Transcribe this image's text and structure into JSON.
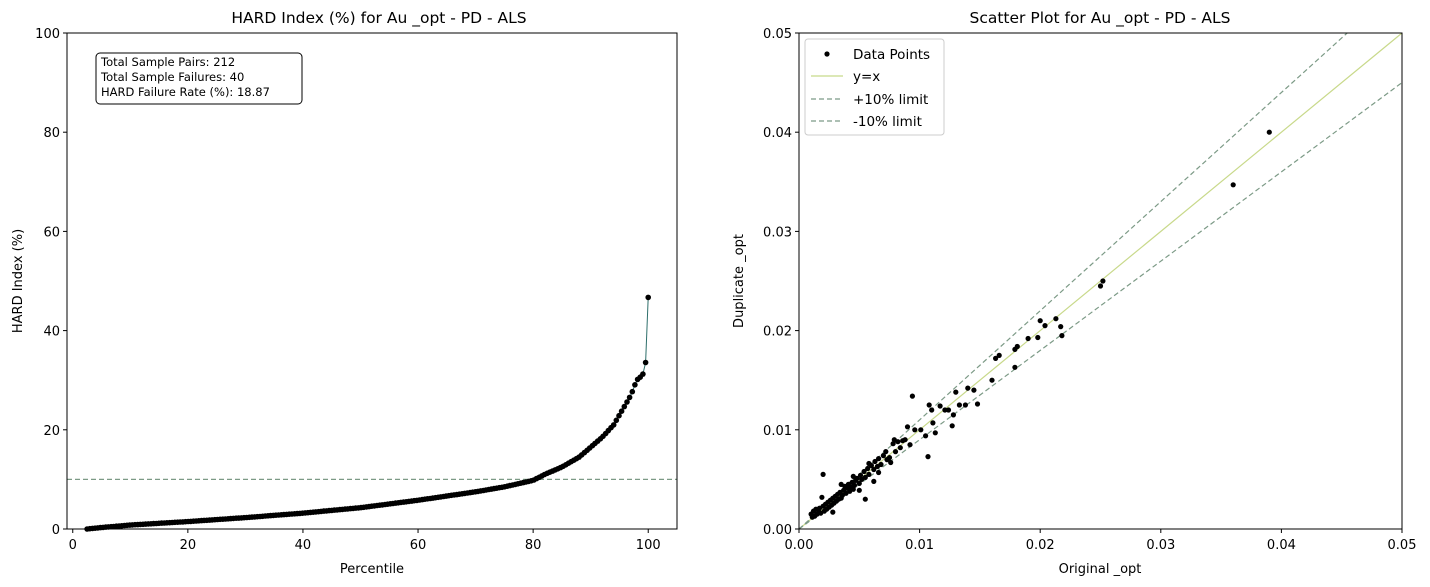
{
  "chart_data": [
    {
      "type": "line",
      "title": "HARD Index (%) for Au _opt - PD - ALS",
      "xlabel": "Percentile",
      "ylabel": "HARD Index (%)",
      "xlim": [
        -1,
        105
      ],
      "ylim": [
        0,
        100
      ],
      "xticks": [
        0,
        20,
        40,
        60,
        80,
        100
      ],
      "yticks": [
        0,
        20,
        40,
        60,
        80,
        100
      ],
      "threshold": 10,
      "info": [
        "Total Sample Pairs: 212",
        "Total Sample Failures: 40",
        "HARD Failure Rate (%): 18.87"
      ],
      "curve_knots": {
        "percentile": [
          2.5,
          5,
          10,
          20,
          30,
          40,
          50,
          60,
          70,
          75,
          80,
          82,
          85,
          88,
          90,
          92,
          94,
          96,
          97,
          98,
          99,
          99.5,
          100
        ],
        "hard_index": [
          0,
          0.3,
          0.8,
          1.5,
          2.3,
          3.2,
          4.3,
          5.8,
          7.5,
          8.5,
          9.8,
          11.0,
          12.5,
          14.5,
          16.5,
          18.5,
          21.0,
          25.0,
          27.0,
          30.0,
          31.0,
          32.5,
          46.7
        ]
      },
      "n_points": 212,
      "colors": {
        "line": "#2e6f6b",
        "points": "#000000",
        "threshold": "#7c9a86"
      }
    },
    {
      "type": "scatter",
      "title": "Scatter Plot for Au _opt - PD - ALS",
      "xlabel": "Original _opt",
      "ylabel": "Duplicate _opt",
      "xlim": [
        0,
        0.05
      ],
      "ylim": [
        0,
        0.05
      ],
      "xticks": [
        "0.00",
        "0.01",
        "0.02",
        "0.03",
        "0.04",
        "0.05"
      ],
      "yticks": [
        "0.00",
        "0.01",
        "0.02",
        "0.03",
        "0.04",
        "0.05"
      ],
      "legend_position": "upper-left",
      "legend": [
        "Data Points",
        "y=x",
        "+10% limit",
        "-10% limit"
      ],
      "limit_factors": [
        1.1,
        0.9
      ],
      "points": [
        [
          0.039,
          0.04
        ],
        [
          0.036,
          0.0347
        ],
        [
          0.0252,
          0.025
        ],
        [
          0.025,
          0.0245
        ],
        [
          0.0218,
          0.0195
        ],
        [
          0.0217,
          0.0204
        ],
        [
          0.0213,
          0.0212
        ],
        [
          0.0204,
          0.0205
        ],
        [
          0.02,
          0.021
        ],
        [
          0.0198,
          0.0193
        ],
        [
          0.019,
          0.0192
        ],
        [
          0.0181,
          0.0184
        ],
        [
          0.0179,
          0.0181
        ],
        [
          0.0179,
          0.0163
        ],
        [
          0.0166,
          0.0175
        ],
        [
          0.0163,
          0.0172
        ],
        [
          0.016,
          0.015
        ],
        [
          0.0148,
          0.0126
        ],
        [
          0.0145,
          0.014
        ],
        [
          0.014,
          0.0142
        ],
        [
          0.0138,
          0.0125
        ],
        [
          0.0133,
          0.0125
        ],
        [
          0.013,
          0.0138
        ],
        [
          0.0128,
          0.0115
        ],
        [
          0.0127,
          0.0104
        ],
        [
          0.0124,
          0.012
        ],
        [
          0.0121,
          0.012
        ],
        [
          0.0117,
          0.0124
        ],
        [
          0.0113,
          0.0097
        ],
        [
          0.0111,
          0.0107
        ],
        [
          0.011,
          0.012
        ],
        [
          0.0108,
          0.0125
        ],
        [
          0.0107,
          0.0073
        ],
        [
          0.0105,
          0.0094
        ],
        [
          0.0101,
          0.01
        ],
        [
          0.0096,
          0.01
        ],
        [
          0.0094,
          0.0134
        ],
        [
          0.0092,
          0.0085
        ],
        [
          0.009,
          0.0103
        ],
        [
          0.0088,
          0.009
        ],
        [
          0.0086,
          0.0089
        ],
        [
          0.0084,
          0.0082
        ],
        [
          0.0082,
          0.0088
        ],
        [
          0.008,
          0.0078
        ],
        [
          0.0078,
          0.0086
        ],
        [
          0.0075,
          0.0072
        ],
        [
          0.0073,
          0.007
        ],
        [
          0.0072,
          0.0078
        ],
        [
          0.007,
          0.0074
        ],
        [
          0.0068,
          0.0065
        ],
        [
          0.0066,
          0.0071
        ],
        [
          0.0065,
          0.0063
        ],
        [
          0.0063,
          0.0068
        ],
        [
          0.0062,
          0.006
        ],
        [
          0.006,
          0.0064
        ],
        [
          0.0058,
          0.0055
        ],
        [
          0.0057,
          0.0061
        ],
        [
          0.0055,
          0.0052
        ],
        [
          0.0054,
          0.0058
        ],
        [
          0.0052,
          0.005
        ],
        [
          0.0051,
          0.0054
        ],
        [
          0.005,
          0.0046
        ],
        [
          0.0048,
          0.0051
        ],
        [
          0.0047,
          0.0049
        ],
        [
          0.0046,
          0.0044
        ],
        [
          0.0045,
          0.004
        ],
        [
          0.0044,
          0.0047
        ],
        [
          0.0043,
          0.0042
        ],
        [
          0.0042,
          0.0038
        ],
        [
          0.0041,
          0.0045
        ],
        [
          0.004,
          0.0041
        ],
        [
          0.0039,
          0.0036
        ],
        [
          0.0038,
          0.0043
        ],
        [
          0.0037,
          0.0039
        ],
        [
          0.0036,
          0.0034
        ],
        [
          0.0035,
          0.0031
        ],
        [
          0.0034,
          0.0037
        ],
        [
          0.0033,
          0.003
        ],
        [
          0.0032,
          0.0035
        ],
        [
          0.0031,
          0.0028
        ],
        [
          0.003,
          0.0033
        ],
        [
          0.0029,
          0.0026
        ],
        [
          0.0028,
          0.0031
        ],
        [
          0.0027,
          0.0024
        ],
        [
          0.0026,
          0.0029
        ],
        [
          0.0025,
          0.0022
        ],
        [
          0.0024,
          0.0027
        ],
        [
          0.0023,
          0.002
        ],
        [
          0.0022,
          0.0025
        ],
        [
          0.0021,
          0.0018
        ],
        [
          0.002,
          0.0023
        ],
        [
          0.0019,
          0.0032
        ],
        [
          0.0018,
          0.0016
        ],
        [
          0.0017,
          0.0021
        ],
        [
          0.0016,
          0.0019
        ],
        [
          0.0015,
          0.0015
        ],
        [
          0.0014,
          0.002
        ],
        [
          0.0013,
          0.0013
        ],
        [
          0.0012,
          0.0018
        ],
        [
          0.0011,
          0.0012
        ],
        [
          0.001,
          0.0015
        ],
        [
          0.002,
          0.0055
        ],
        [
          0.0055,
          0.003
        ],
        [
          0.0045,
          0.0053
        ],
        [
          0.0062,
          0.0048
        ],
        [
          0.0035,
          0.0045
        ],
        [
          0.0028,
          0.0017
        ],
        [
          0.005,
          0.0039
        ],
        [
          0.0058,
          0.0066
        ],
        [
          0.0066,
          0.0057
        ],
        [
          0.0076,
          0.0067
        ],
        [
          0.0079,
          0.009
        ]
      ],
      "colors": {
        "points": "#000000",
        "identity": "#c8d98a",
        "limits": "#7c9a86"
      }
    }
  ]
}
